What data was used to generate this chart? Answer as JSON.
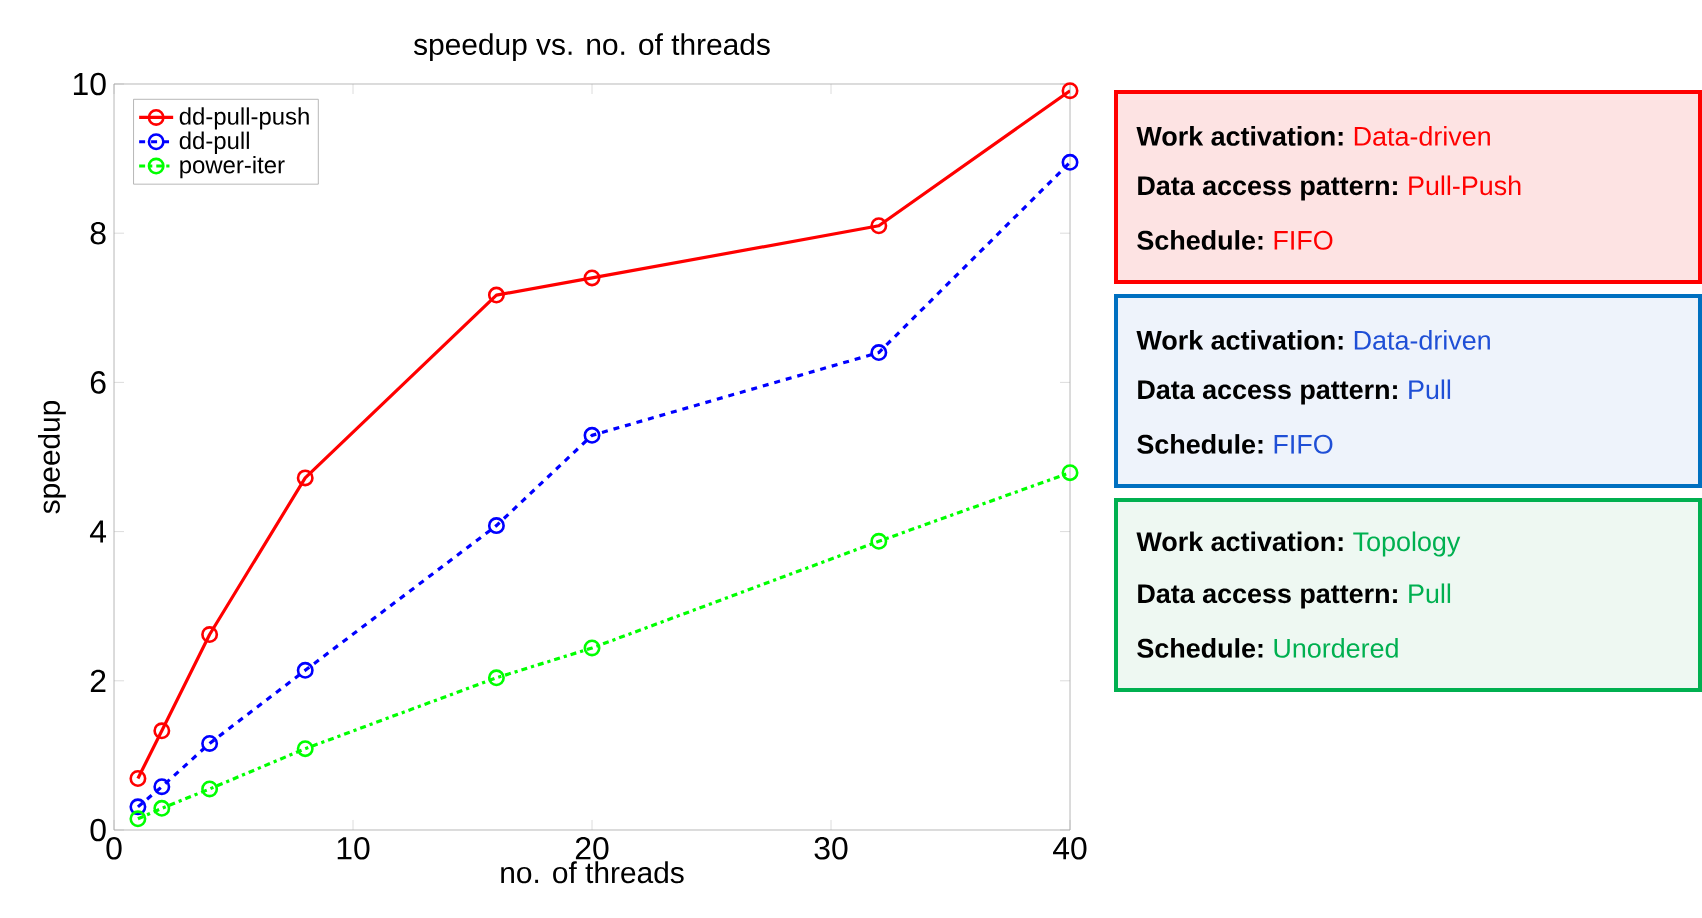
{
  "chart_data": {
    "type": "line",
    "title": "speedup vs. no. of threads",
    "xlabel": "no. of threads",
    "ylabel": "speedup",
    "x": [
      1,
      2,
      4,
      8,
      16,
      20,
      32,
      40
    ],
    "series": [
      {
        "name": "dd-pull-push",
        "color": "#ff0000",
        "line_style": "solid",
        "values": [
          0.69,
          1.33,
          2.62,
          4.72,
          7.17,
          7.4,
          8.1,
          9.91
        ]
      },
      {
        "name": "dd-pull",
        "color": "#0000ff",
        "line_style": "dashed",
        "values": [
          0.31,
          0.58,
          1.16,
          2.14,
          4.08,
          5.29,
          6.4,
          8.95
        ]
      },
      {
        "name": "power-iter",
        "color": "#00ff00",
        "line_style": "dashdot",
        "values": [
          0.15,
          0.29,
          0.55,
          1.09,
          2.04,
          2.44,
          3.87,
          4.79
        ]
      }
    ],
    "xlim": [
      0,
      40
    ],
    "ylim": [
      0,
      10
    ],
    "xticks": [
      0,
      10,
      20,
      30,
      40
    ],
    "yticks": [
      0,
      2,
      4,
      6,
      8,
      10
    ],
    "marker": "circle",
    "legend": "top left",
    "grid": false,
    "annotations": [
      "Work activation:",
      "Data-driven",
      "Data access pattern:",
      "Pull-Push",
      "Schedule:",
      "FIFO",
      "Work activation:",
      "Data-driven",
      "Data access pattern:",
      "Pull",
      "Schedule:",
      "FIFO",
      "Work activation:",
      "Topology",
      "Data access pattern:",
      "Pull",
      "Schedule:",
      "Unordered"
    ]
  }
}
